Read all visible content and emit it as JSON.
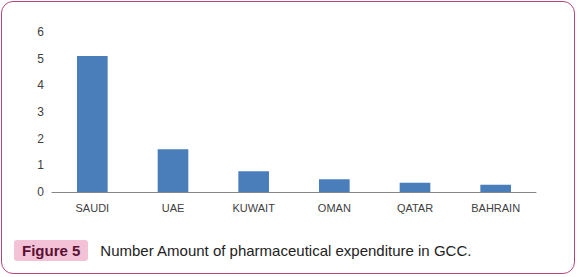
{
  "chart_data": {
    "type": "bar",
    "title": "Number Amount of pharmaceutical expenditure in GCC.",
    "figure_label": "Figure 5",
    "categories": [
      "SAUDI",
      "UAE",
      "KUWAIT",
      "OMAN",
      "QATAR",
      "BAHRAIN"
    ],
    "values": [
      5.1,
      1.6,
      0.78,
      0.48,
      0.35,
      0.27
    ],
    "color": "#4a7ebb",
    "ylim": [
      0,
      6
    ],
    "yticks": [
      0,
      1,
      2,
      3,
      4,
      5,
      6
    ],
    "grid": false
  }
}
